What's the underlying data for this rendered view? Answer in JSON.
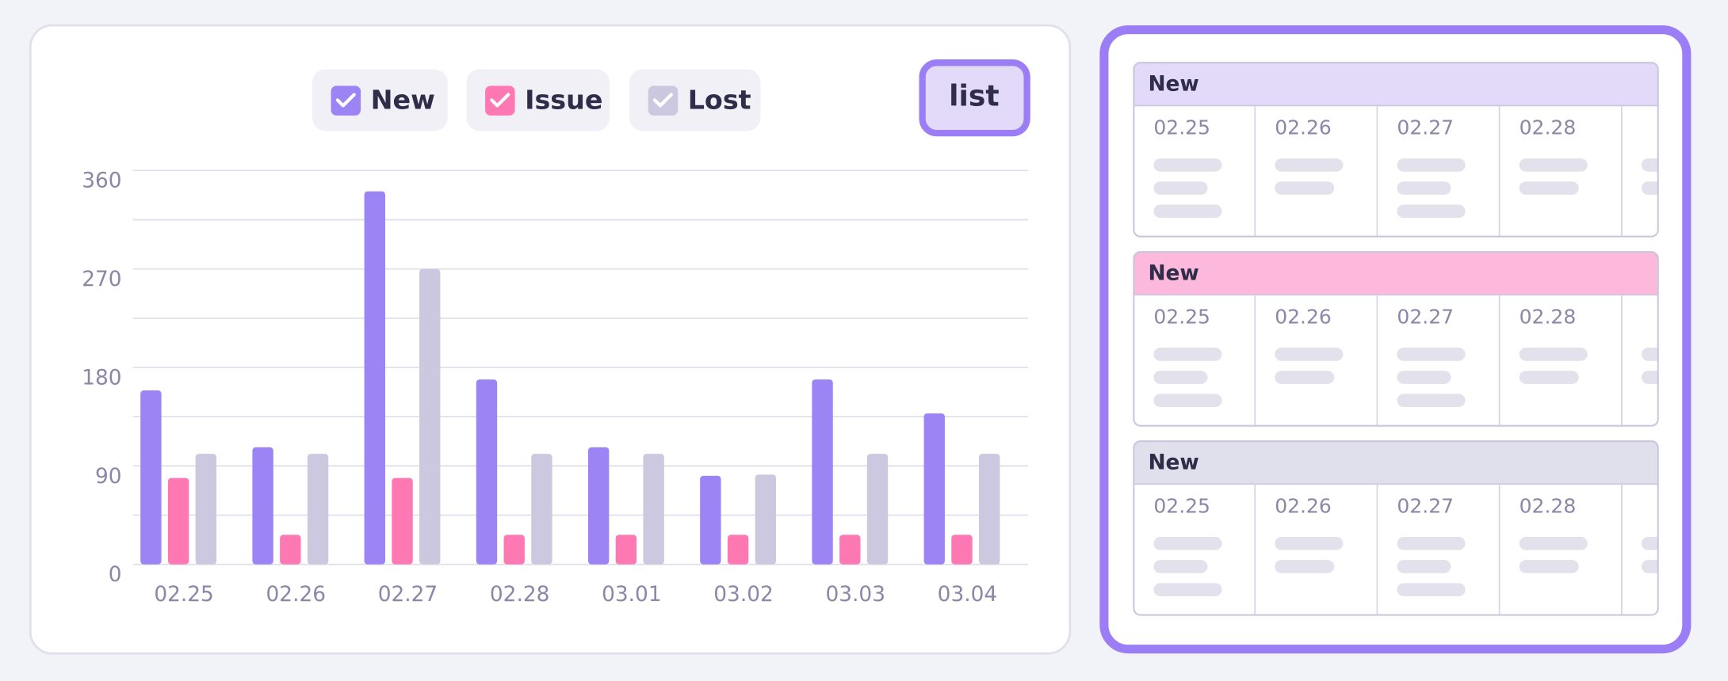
{
  "chart_data": {
    "type": "bar",
    "categories": [
      "02.25",
      "02.26",
      "02.27",
      "02.28",
      "03.01",
      "03.02",
      "03.03",
      "03.04"
    ],
    "series": [
      {
        "name": "New",
        "color": "#9d84f5",
        "values": [
          159,
          107,
          341,
          169,
          107,
          81,
          169,
          138
        ]
      },
      {
        "name": "Issue",
        "color": "#fe78b3",
        "values": [
          79,
          27,
          79,
          27,
          27,
          27,
          27,
          27
        ]
      },
      {
        "name": "Lost",
        "color": "#cbc8e0",
        "values": [
          101,
          101,
          270,
          101,
          101,
          82,
          101,
          101
        ]
      }
    ],
    "ylim": [
      0,
      360
    ],
    "yticks": [
      0,
      90,
      180,
      270,
      360
    ],
    "minor_yticks": [
      45,
      135,
      225,
      315
    ],
    "grid": true
  },
  "button": {
    "label": "list"
  },
  "panel": {
    "cards": [
      {
        "title": "New",
        "color": "#e3dafa",
        "columns": [
          "02.25",
          "02.26",
          "02.27",
          "02.28"
        ]
      },
      {
        "title": "New",
        "color": "#fdb9dc",
        "columns": [
          "02.25",
          "02.26",
          "02.27",
          "02.28"
        ]
      },
      {
        "title": "New",
        "color": "#e0dfec",
        "columns": [
          "02.25",
          "02.26",
          "02.27",
          "02.28"
        ]
      }
    ]
  }
}
